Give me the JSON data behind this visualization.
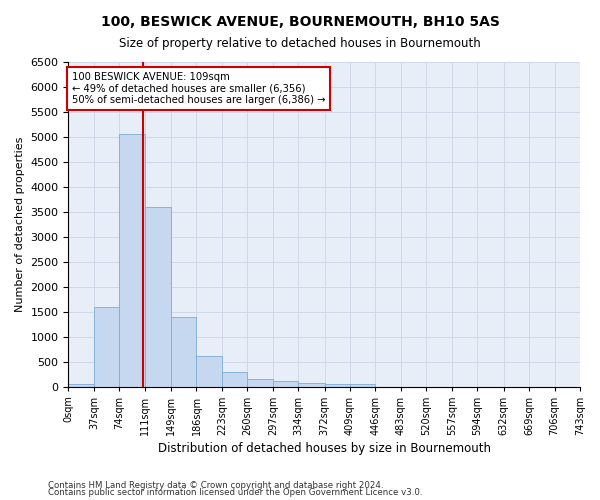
{
  "title": "100, BESWICK AVENUE, BOURNEMOUTH, BH10 5AS",
  "subtitle": "Size of property relative to detached houses in Bournemouth",
  "xlabel": "Distribution of detached houses by size in Bournemouth",
  "ylabel": "Number of detached properties",
  "footer_line1": "Contains HM Land Registry data © Crown copyright and database right 2024.",
  "footer_line2": "Contains public sector information licensed under the Open Government Licence v3.0.",
  "bar_edges": [
    0,
    37,
    74,
    111,
    149,
    186,
    223,
    260,
    297,
    334,
    372,
    409,
    446,
    483,
    520,
    557,
    594,
    632,
    669,
    706,
    743
  ],
  "bar_heights": [
    50,
    1600,
    5050,
    3600,
    1400,
    620,
    290,
    160,
    110,
    70,
    55,
    50,
    0,
    0,
    0,
    0,
    0,
    0,
    0,
    0
  ],
  "bar_color": "#c5d8f0",
  "bar_edge_color": "#7aadd4",
  "grid_color": "#d0d8e8",
  "bg_color": "#e8eef8",
  "vline_x": 109,
  "vline_color": "#cc0000",
  "annotation_text": "100 BESWICK AVENUE: 109sqm\n← 49% of detached houses are smaller (6,356)\n50% of semi-detached houses are larger (6,386) →",
  "annotation_box_color": "#cc0000",
  "ylim": [
    0,
    6500
  ],
  "yticks": [
    0,
    500,
    1000,
    1500,
    2000,
    2500,
    3000,
    3500,
    4000,
    4500,
    5000,
    5500,
    6000,
    6500
  ],
  "tick_labels": [
    "0sqm",
    "37sqm",
    "74sqm",
    "111sqm",
    "149sqm",
    "186sqm",
    "223sqm",
    "260sqm",
    "297sqm",
    "334sqm",
    "372sqm",
    "409sqm",
    "446sqm",
    "483sqm",
    "520sqm",
    "557sqm",
    "594sqm",
    "632sqm",
    "669sqm",
    "706sqm",
    "743sqm"
  ]
}
